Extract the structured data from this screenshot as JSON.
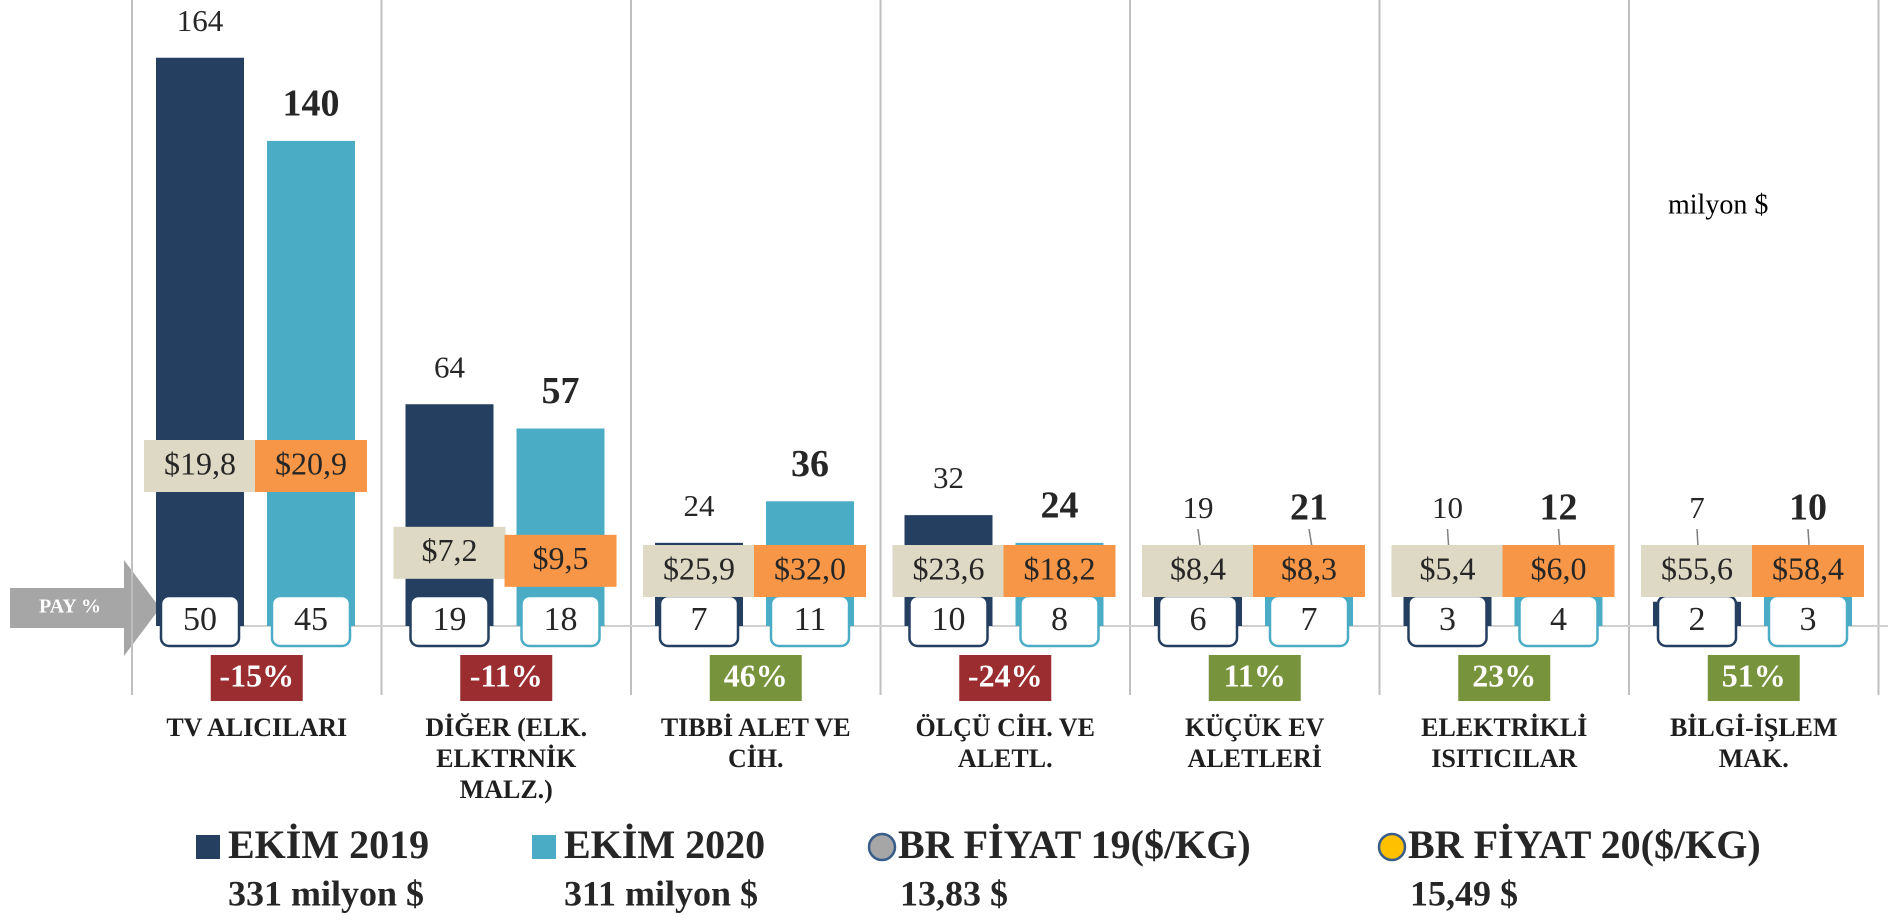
{
  "chart_data": {
    "type": "bar",
    "unit_note": "milyon $",
    "share_title": "PAY %",
    "categories": [
      "TV ALICILARI",
      "DİĞER (ELK. ELKTRNİK MALZ.)",
      "TIBBİ ALET VE CİH.",
      "ÖLÇÜ CİH. VE ALETL.",
      "KÜÇÜK EV ALETLERİ",
      "ELEKTRİKLİ ISITICILAR",
      "BİLGİ-İŞLEM MAK."
    ],
    "series": [
      {
        "name": "EKİM 2019",
        "total": "331 milyon $",
        "color": "#243f60",
        "values": [
          164,
          64,
          24,
          32,
          19,
          10,
          7
        ],
        "shares": [
          50,
          19,
          7,
          10,
          6,
          3,
          2
        ]
      },
      {
        "name": "EKİM 2020",
        "total": "311 milyon $",
        "color": "#4bacc6",
        "values": [
          140,
          57,
          36,
          24,
          21,
          12,
          10
        ],
        "shares": [
          45,
          18,
          11,
          8,
          7,
          4,
          3
        ]
      }
    ],
    "prices": [
      {
        "name": "BR FİYAT 19($/KG)",
        "average": "13,83 $",
        "color": "#ddd9c4",
        "marker": "#a6a6a6",
        "values": [
          19.8,
          7.2,
          25.9,
          23.6,
          8.4,
          5.4,
          55.6
        ],
        "value_labels": [
          "$19,8",
          "$7,2",
          "$25,9",
          "$23,6",
          "$8,4",
          "$5,4",
          "$55,6"
        ]
      },
      {
        "name": "BR FİYAT 20($/KG)",
        "average": "15,49 $",
        "color": "#f79646",
        "marker": "#ffc000",
        "values": [
          20.9,
          9.5,
          32.0,
          18.2,
          8.3,
          6.0,
          58.4
        ],
        "value_labels": [
          "$20,9",
          "$9,5",
          "$32,0",
          "$18,2",
          "$8,3",
          "$6,0",
          "$58,4"
        ]
      }
    ],
    "change": {
      "values": [
        -15,
        -11,
        46,
        -24,
        11,
        23,
        51
      ],
      "value_labels": [
        "-15%",
        "-11%",
        "46%",
        "-24%",
        "11%",
        "23%",
        "51%"
      ],
      "negative_color": "#9b2d30",
      "positive_color": "#77933c"
    }
  }
}
